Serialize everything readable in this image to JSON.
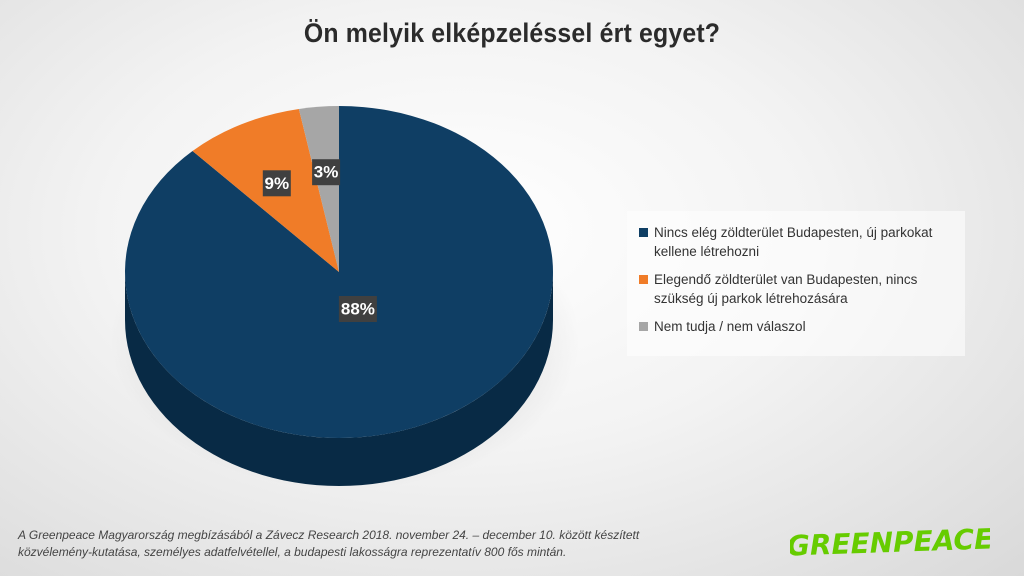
{
  "title": "Ön melyik elképzeléssel ért egyet?",
  "chart_data": {
    "type": "pie",
    "title": "Ön melyik elképzeléssel ért egyet?",
    "slices": [
      {
        "label": "Nincs elég zöldterület Budapesten, új parkokat kellene létrehozni",
        "value": 88,
        "display": "88%",
        "color": "#0f3e64",
        "side_color": "#082a45"
      },
      {
        "label": "Elegendő zöldterület van Budapesten, nincs szükség új parkok létrehozására",
        "value": 9,
        "display": "9%",
        "color": "#f07c28",
        "side_color": "#b85a17"
      },
      {
        "label": "Nem tudja / nem válaszol",
        "value": 3,
        "display": "3%",
        "color": "#a6a6a6",
        "side_color": "#7a7a7a"
      }
    ],
    "legend_position": "right",
    "three_d": true
  },
  "footnote": {
    "line1": "A Greenpeace Magyarország megbízásából a Závecz Research 2018. november 24. – december 10. között készített",
    "line2": "közvélemény-kutatása, személyes adatfelvétellel, a budapesti lakosságra reprezentatív 800 fős mintán."
  },
  "logo": {
    "text": "GREENPEACE",
    "color": "#66cc00"
  }
}
